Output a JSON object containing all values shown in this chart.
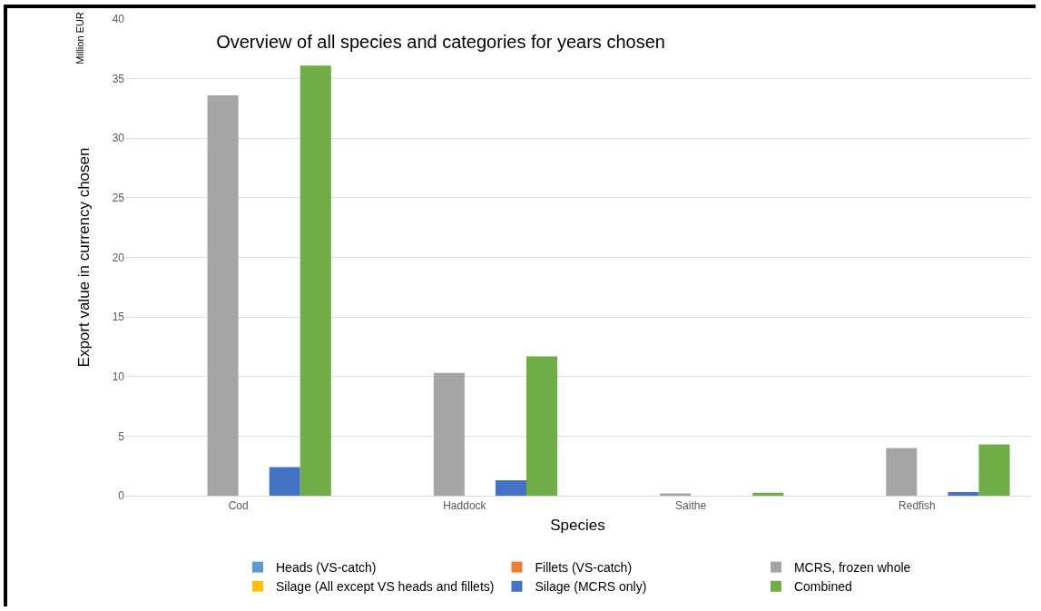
{
  "chart_data": {
    "type": "bar",
    "title": "Overview of all species and categories for years chosen",
    "xlabel": "Species",
    "ylabel": "Export value in currency chosen",
    "annotations": [
      "Million EUR"
    ],
    "categories": [
      "Cod",
      "Haddock",
      "Saithe",
      "Redfish"
    ],
    "series": [
      {
        "name": "Heads (VS-catch)",
        "color": "#5b9bd5",
        "values": [
          0,
          0,
          0,
          0
        ]
      },
      {
        "name": "Fillets (VS-catch)",
        "color": "#ed7d31",
        "values": [
          0,
          0,
          0,
          0
        ]
      },
      {
        "name": "MCRS, frozen whole",
        "color": "#a5a5a5",
        "values": [
          33.6,
          10.3,
          0.2,
          4.0
        ]
      },
      {
        "name": "Silage (All except VS heads and fillets)",
        "color": "#ffc000",
        "values": [
          0,
          0,
          0,
          0
        ]
      },
      {
        "name": "Silage (MCRS only)",
        "color": "#4472c4",
        "values": [
          2.4,
          1.3,
          0,
          0.3
        ]
      },
      {
        "name": "Combined",
        "color": "#70ad47",
        "values": [
          36.1,
          11.7,
          0.25,
          4.3
        ]
      }
    ],
    "ylim": [
      0,
      40
    ],
    "yticks": [
      0,
      5,
      10,
      15,
      20,
      25,
      30,
      35,
      40
    ],
    "grid": "y",
    "legend": "bottom"
  }
}
